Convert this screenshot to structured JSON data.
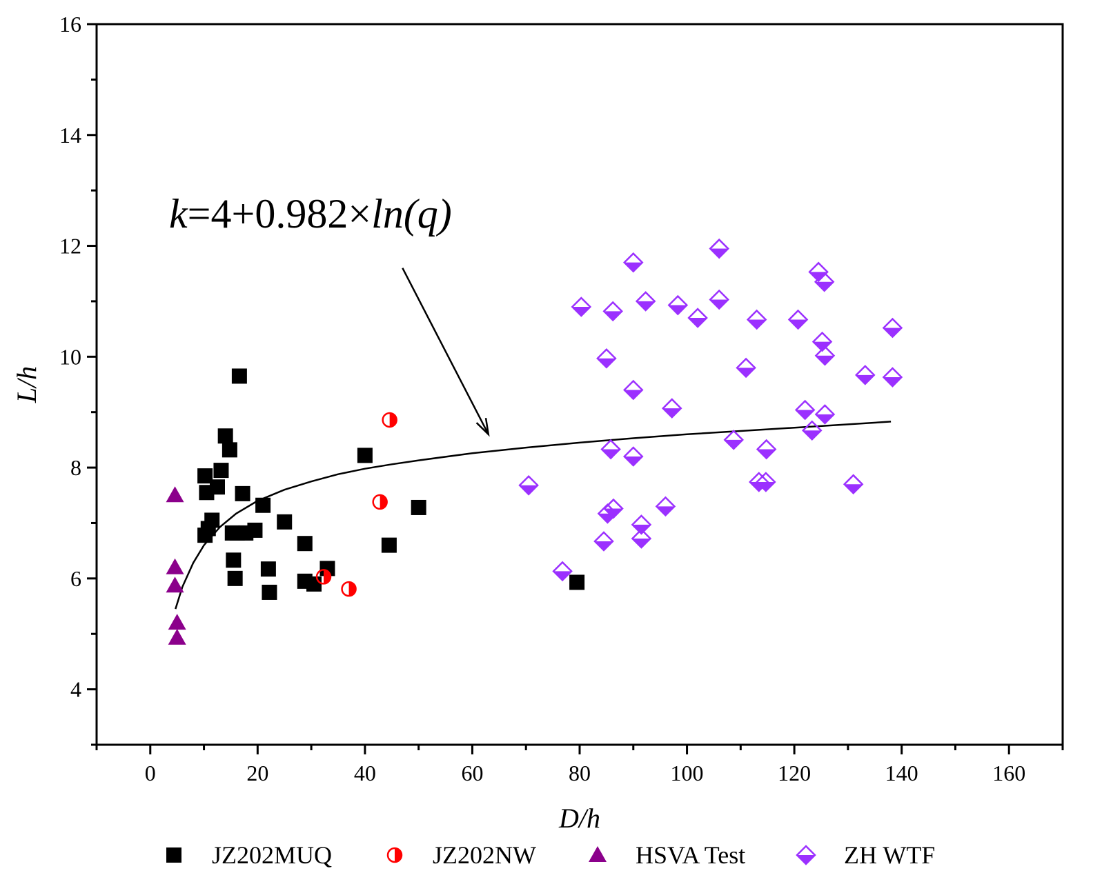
{
  "chart_data": {
    "type": "scatter",
    "title": "",
    "xlabel": "D/h",
    "ylabel": "L/h",
    "xlim": [
      -10,
      170
    ],
    "ylim": [
      3,
      16
    ],
    "x_ticks": [
      0,
      20,
      40,
      60,
      80,
      100,
      120,
      140,
      160
    ],
    "y_ticks": [
      4,
      6,
      8,
      10,
      12,
      14,
      16
    ],
    "grid": false,
    "legend_position": "bottom",
    "annotation": {
      "text_parts": [
        {
          "text": "k",
          "italic": true
        },
        {
          "text": "=4+0.982×",
          "italic": false
        },
        {
          "text": "ln(q)",
          "italic": true
        }
      ],
      "arrow_from": [
        47,
        11.6
      ],
      "arrow_to": [
        63,
        8.6
      ]
    },
    "fit_curve": {
      "equation": "k=4+0.982×ln(q)",
      "x": [
        4.7,
        6,
        8,
        10,
        13,
        16,
        20,
        25,
        30,
        35,
        40,
        45,
        50,
        60,
        70,
        80,
        90,
        100,
        110,
        120,
        130,
        138
      ],
      "y": [
        5.45,
        5.85,
        6.28,
        6.6,
        6.93,
        7.17,
        7.4,
        7.6,
        7.75,
        7.88,
        7.98,
        8.06,
        8.13,
        8.26,
        8.36,
        8.45,
        8.53,
        8.6,
        8.66,
        8.72,
        8.78,
        8.83
      ]
    },
    "series": [
      {
        "name": "JZ202MUQ",
        "marker": "square",
        "color": "#000000",
        "points": [
          [
            10.2,
            7.85
          ],
          [
            10.5,
            7.55
          ],
          [
            10.2,
            6.78
          ],
          [
            10.8,
            6.9
          ],
          [
            11.5,
            7.05
          ],
          [
            12.5,
            7.65
          ],
          [
            13.2,
            7.95
          ],
          [
            14.0,
            8.57
          ],
          [
            14.8,
            8.32
          ],
          [
            15.3,
            6.82
          ],
          [
            15.5,
            6.33
          ],
          [
            15.8,
            6.0
          ],
          [
            16.2,
            6.82
          ],
          [
            16.6,
            9.65
          ],
          [
            17.2,
            7.53
          ],
          [
            17.8,
            6.82
          ],
          [
            19.5,
            6.87
          ],
          [
            21.0,
            7.32
          ],
          [
            22.0,
            6.17
          ],
          [
            22.2,
            5.75
          ],
          [
            25.0,
            7.02
          ],
          [
            28.8,
            6.63
          ],
          [
            28.8,
            5.95
          ],
          [
            30.5,
            5.9
          ],
          [
            33.0,
            6.18
          ],
          [
            40.0,
            8.22
          ],
          [
            44.5,
            6.6
          ],
          [
            50.0,
            7.28
          ],
          [
            79.5,
            5.93
          ]
        ]
      },
      {
        "name": "JZ202NW",
        "marker": "half-circle",
        "color": "#ff0000",
        "points": [
          [
            32.3,
            6.03
          ],
          [
            37.0,
            5.81
          ],
          [
            42.8,
            7.38
          ],
          [
            44.6,
            8.86
          ]
        ]
      },
      {
        "name": "HSVA Test",
        "marker": "triangle",
        "color": "#8b008b",
        "points": [
          [
            4.6,
            7.5
          ],
          [
            4.6,
            6.2
          ],
          [
            4.6,
            5.87
          ],
          [
            5.0,
            5.2
          ],
          [
            5.0,
            4.93
          ]
        ]
      },
      {
        "name": "ZH WTF",
        "marker": "half-diamond",
        "color": "#9b30ff",
        "points": [
          [
            70.5,
            7.68
          ],
          [
            76.8,
            6.13
          ],
          [
            80.3,
            10.9
          ],
          [
            84.5,
            6.67
          ],
          [
            85.0,
            9.97
          ],
          [
            85.2,
            7.17
          ],
          [
            85.8,
            8.33
          ],
          [
            86.2,
            10.82
          ],
          [
            86.3,
            7.26
          ],
          [
            90.0,
            11.7
          ],
          [
            90.0,
            9.4
          ],
          [
            90.0,
            8.2
          ],
          [
            91.5,
            6.97
          ],
          [
            91.5,
            6.72
          ],
          [
            92.3,
            11.0
          ],
          [
            96.0,
            7.3
          ],
          [
            97.2,
            9.07
          ],
          [
            98.3,
            10.93
          ],
          [
            102.0,
            10.7
          ],
          [
            106.0,
            11.95
          ],
          [
            106.0,
            11.03
          ],
          [
            108.7,
            8.5
          ],
          [
            111.0,
            9.8
          ],
          [
            113.0,
            10.67
          ],
          [
            113.4,
            7.74
          ],
          [
            114.7,
            7.74
          ],
          [
            114.8,
            8.33
          ],
          [
            120.7,
            10.67
          ],
          [
            122.0,
            9.04
          ],
          [
            123.3,
            8.67
          ],
          [
            124.5,
            11.53
          ],
          [
            125.2,
            10.27
          ],
          [
            125.6,
            11.35
          ],
          [
            125.7,
            10.02
          ],
          [
            125.7,
            8.96
          ],
          [
            131.0,
            7.7
          ],
          [
            133.2,
            9.67
          ],
          [
            138.3,
            10.52
          ],
          [
            138.3,
            9.63
          ]
        ]
      }
    ]
  }
}
